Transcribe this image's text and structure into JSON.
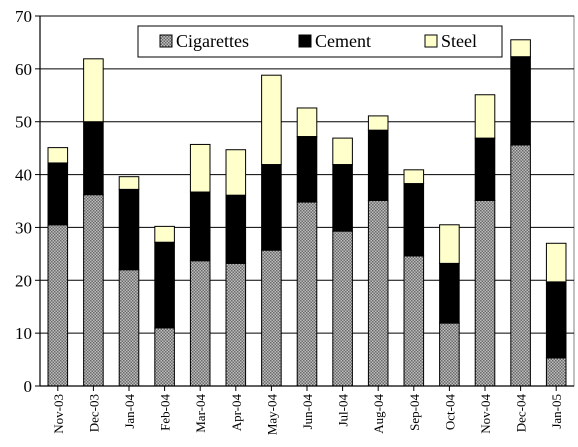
{
  "chart_data": {
    "type": "bar",
    "stacked": true,
    "title": "",
    "xlabel": "",
    "ylabel": "",
    "ylim": [
      0,
      70
    ],
    "yticks": [
      0,
      10,
      20,
      30,
      40,
      50,
      60,
      70
    ],
    "grid": true,
    "legend": "top-center",
    "categories": [
      "Nov-03",
      "Dec-03",
      "Jan-04",
      "Feb-04",
      "Mar-04",
      "Apr-04",
      "May-04",
      "Jun-04",
      "Jul-04",
      "Aug-04",
      "Sep-04",
      "Oct-04",
      "Nov-04",
      "Dec-04",
      "Jan-05"
    ],
    "series": [
      {
        "name": "Cigarettes",
        "color": "#9a9a9a",
        "pattern": "dotted-gray",
        "values": [
          30.5,
          36.2,
          22.0,
          11.0,
          23.7,
          23.2,
          25.7,
          34.8,
          29.3,
          35.1,
          24.6,
          11.9,
          35.1,
          45.6,
          5.3
        ]
      },
      {
        "name": "Cement",
        "color": "#000000",
        "pattern": "solid-black",
        "values": [
          11.7,
          13.8,
          15.2,
          16.2,
          13.0,
          12.9,
          16.2,
          12.4,
          12.6,
          13.3,
          13.7,
          11.3,
          11.8,
          16.7,
          14.4
        ]
      },
      {
        "name": "Steel",
        "color": "#ffffcc",
        "pattern": "solid-cream",
        "values": [
          2.9,
          11.9,
          2.4,
          3.0,
          9.0,
          8.6,
          16.9,
          5.4,
          5.0,
          2.7,
          2.6,
          7.3,
          8.2,
          3.2,
          7.3
        ]
      }
    ]
  }
}
